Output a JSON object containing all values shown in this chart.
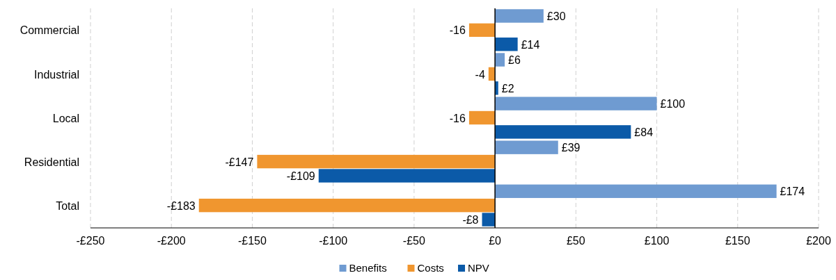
{
  "chart_data": {
    "type": "bar",
    "orientation": "horizontal",
    "categories": [
      "Commercial",
      "Industrial",
      "Local",
      "Residential",
      "Total"
    ],
    "series": [
      {
        "name": "Benefits",
        "color": "#6f9bd1",
        "values": [
          30,
          6,
          100,
          39,
          174
        ],
        "value_labels": [
          "£30",
          "£6",
          "£100",
          "£39",
          "£174"
        ]
      },
      {
        "name": "Costs",
        "color": "#f0962f",
        "values": [
          -16,
          -4,
          -16,
          -147,
          -183
        ],
        "value_labels": [
          "-16",
          "-4",
          "-16",
          "-£147",
          "-£183"
        ]
      },
      {
        "name": "NPV",
        "color": "#0b5aa8",
        "values": [
          14,
          2,
          84,
          -109,
          -8
        ],
        "value_labels": [
          "£14",
          "£2",
          "£84",
          "-£109",
          "-£8"
        ]
      }
    ],
    "xlim": [
      -250,
      200
    ],
    "xticks": [
      {
        "value": -250,
        "label": "-£250"
      },
      {
        "value": -200,
        "label": "-£200"
      },
      {
        "value": -150,
        "label": "-£150"
      },
      {
        "value": -100,
        "label": "-£100"
      },
      {
        "value": -50,
        "label": "-£50"
      },
      {
        "value": 0,
        "label": "£0"
      },
      {
        "value": 50,
        "label": "£50"
      },
      {
        "value": 100,
        "label": "£100"
      },
      {
        "value": 150,
        "label": "£150"
      },
      {
        "value": 200,
        "label": "£200"
      }
    ],
    "grid": "x",
    "legend": "bottom"
  }
}
